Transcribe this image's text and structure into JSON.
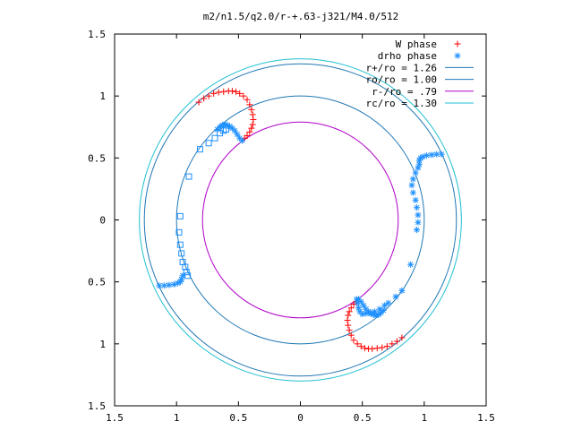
{
  "chart_data": {
    "type": "scatter",
    "title": "m2/n1.5/q2.0/r-+.63-j321/M4.0/512",
    "xlim": [
      -1.5,
      1.5
    ],
    "ylim": [
      -1.5,
      1.5
    ],
    "x_ticks": [
      -1.5,
      -1,
      -0.5,
      0,
      0.5,
      1,
      1.5
    ],
    "x_tick_labels": [
      "1.5",
      "1",
      "0.5",
      "0",
      "0.5",
      "1",
      "1.5"
    ],
    "y_ticks": [
      1.5,
      1,
      0.5,
      0,
      -0.5,
      -1,
      -1.5
    ],
    "y_tick_labels": [
      "1.5",
      "1",
      "0.5",
      "0",
      "0.5",
      "1",
      "1.5"
    ],
    "grid": false,
    "legend_position": "top-right",
    "colors": {
      "w_phase": "#ff0000",
      "drho_phase": "#1e90ff",
      "r_plus": "#1f77b4",
      "r_o": "#1f77b4",
      "r_minus": "#b000c8",
      "r_c": "#20c0d0",
      "squares": "#1e90ff"
    },
    "legend": [
      {
        "label": "W phase",
        "marker": "+",
        "color": "#ff0000"
      },
      {
        "label": "drho phase",
        "marker": "*",
        "color": "#1e90ff"
      },
      {
        "label": "r+/ro = 1.26",
        "marker": "line",
        "color": "#1f77b4"
      },
      {
        "label": "ro/ro = 1.00",
        "marker": "line",
        "color": "#1f77b4"
      },
      {
        "label": "r-/ro =  .79",
        "marker": "line",
        "color": "#b000c8"
      },
      {
        "label": "rc/ro = 1.30",
        "marker": "line",
        "color": "#20c0d0"
      }
    ],
    "circles": [
      {
        "name": "r+/ro",
        "radius": 1.26,
        "color": "#1f77b4"
      },
      {
        "name": "ro/ro",
        "radius": 1.0,
        "color": "#1f77b4"
      },
      {
        "name": "r-/ro",
        "radius": 0.79,
        "color": "#b000c8"
      },
      {
        "name": "rc/ro",
        "radius": 1.3,
        "color": "#20c0d0"
      }
    ],
    "series": [
      {
        "name": "W phase",
        "marker": "+",
        "color": "#ff0000",
        "x": [
          -0.82,
          -0.78,
          -0.74,
          -0.7,
          -0.66,
          -0.62,
          -0.58,
          -0.55,
          -0.52,
          -0.49,
          -0.46,
          -0.43,
          -0.41,
          -0.395,
          -0.385,
          -0.38,
          -0.385,
          -0.395,
          -0.41,
          -0.43,
          -0.45,
          -0.47,
          0.82,
          0.78,
          0.74,
          0.7,
          0.66,
          0.62,
          0.58,
          0.55,
          0.52,
          0.49,
          0.46,
          0.43,
          0.41,
          0.395,
          0.385,
          0.38,
          0.385,
          0.395,
          0.41,
          0.43,
          0.45,
          0.47
        ],
        "y": [
          0.95,
          0.98,
          1.0,
          1.02,
          1.03,
          1.035,
          1.04,
          1.04,
          1.035,
          1.02,
          1.0,
          0.97,
          0.93,
          0.89,
          0.85,
          0.81,
          0.77,
          0.74,
          0.71,
          0.68,
          0.66,
          0.64,
          -0.95,
          -0.98,
          -1.0,
          -1.02,
          -1.03,
          -1.035,
          -1.04,
          -1.04,
          -1.035,
          -1.02,
          -1.0,
          -0.97,
          -0.93,
          -0.89,
          -0.85,
          -0.81,
          -0.77,
          -0.74,
          -0.71,
          -0.68,
          -0.66,
          -0.64
        ]
      },
      {
        "name": "drho phase",
        "marker": "*",
        "color": "#1e90ff",
        "x": [
          -0.47,
          -0.49,
          -0.51,
          -0.53,
          -0.55,
          -0.57,
          -0.59,
          -0.61,
          -0.63,
          -0.65,
          -0.67,
          1.14,
          1.1,
          1.06,
          1.02,
          0.99,
          0.97,
          0.96,
          0.96,
          0.95,
          0.93,
          0.91,
          0.9,
          0.91,
          0.93,
          0.94,
          0.95,
          0.95,
          0.94,
          0.89,
          0.82,
          0.77,
          0.71,
          0.68,
          0.64,
          0.6,
          0.56,
          0.53,
          0.5,
          0.48,
          0.47,
          0.46,
          0.455,
          -1.14,
          -1.1,
          -1.06,
          -1.02,
          -0.99,
          -0.97,
          -0.96,
          -0.95,
          0.47,
          0.49,
          0.51,
          0.53,
          0.55,
          0.57,
          0.59,
          0.61,
          0.63,
          0.65,
          0.67
        ],
        "y": [
          0.64,
          0.66,
          0.69,
          0.72,
          0.74,
          0.755,
          0.765,
          0.77,
          0.765,
          0.75,
          0.73,
          0.53,
          0.53,
          0.525,
          0.52,
          0.51,
          0.5,
          0.48,
          0.45,
          0.42,
          0.38,
          0.33,
          0.28,
          0.22,
          0.16,
          0.1,
          0.04,
          -0.02,
          -0.08,
          -0.36,
          -0.57,
          -0.62,
          -0.67,
          -0.69,
          -0.72,
          -0.74,
          -0.75,
          -0.755,
          -0.76,
          -0.74,
          -0.71,
          -0.67,
          -0.64,
          -0.53,
          -0.53,
          -0.525,
          -0.52,
          -0.51,
          -0.5,
          -0.48,
          -0.45,
          -0.64,
          -0.66,
          -0.69,
          -0.72,
          -0.74,
          -0.755,
          -0.765,
          -0.77,
          -0.765,
          -0.75,
          -0.73
        ]
      },
      {
        "name": "",
        "marker": "square",
        "color": "#1e90ff",
        "x": [
          -0.6,
          -0.62,
          -0.65,
          -0.69,
          -0.74,
          -0.81,
          -0.9,
          -0.97,
          -0.98,
          -0.97,
          -0.96,
          -0.95,
          -0.93,
          -0.92,
          -0.91
        ],
        "y": [
          0.73,
          0.72,
          0.7,
          0.66,
          0.62,
          0.57,
          0.35,
          0.03,
          -0.1,
          -0.2,
          -0.27,
          -0.34,
          -0.38,
          -0.42,
          -0.45
        ]
      }
    ]
  }
}
